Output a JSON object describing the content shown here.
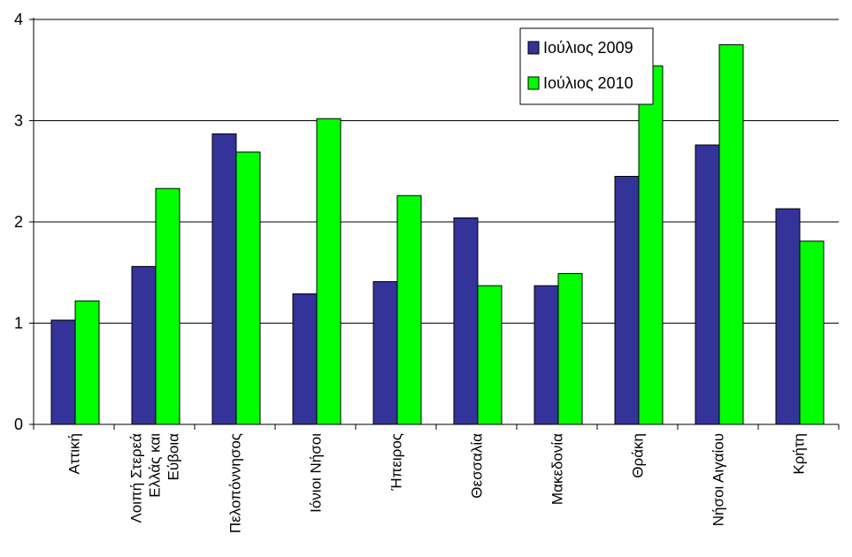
{
  "chart_data": {
    "type": "bar",
    "categories": [
      [
        "Αττική"
      ],
      [
        "Λοιπή Στερεά",
        "Ελλάς και",
        "Εύβοια"
      ],
      [
        "Πελοπόννησος"
      ],
      [
        "Ιόνιοι Νήσοι"
      ],
      [
        "Ήπειρος"
      ],
      [
        "Θεσσαλία"
      ],
      [
        "Μακεδονία"
      ],
      [
        "Θράκη"
      ],
      [
        "Νήσοι Αιγαίου"
      ],
      [
        "Κρήτη"
      ]
    ],
    "series": [
      {
        "name": "Ιούλιος 2009",
        "color": "#333399",
        "values": [
          1.03,
          1.56,
          2.87,
          1.29,
          1.41,
          2.04,
          1.37,
          2.45,
          2.76,
          2.13
        ]
      },
      {
        "name": "Ιούλιος 2010",
        "color": "#00ff00",
        "values": [
          1.22,
          2.33,
          2.69,
          3.02,
          2.26,
          1.37,
          1.49,
          3.54,
          3.75,
          1.81
        ]
      }
    ],
    "ylim": [
      0,
      4
    ],
    "yticks": [
      0,
      1,
      2,
      3,
      4
    ],
    "grid": true,
    "legend_position": "top-right"
  }
}
